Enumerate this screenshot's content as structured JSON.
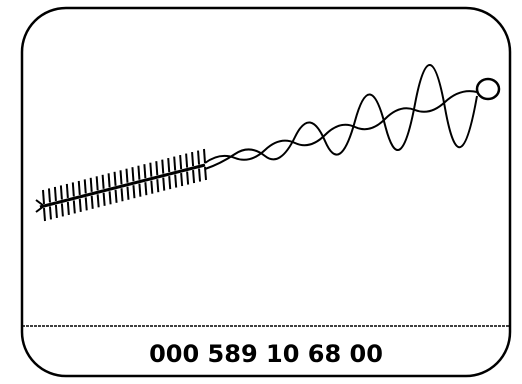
{
  "part_number": "000 589 10 68 00",
  "illustration": {
    "icon": "cleaning-brush-icon"
  },
  "colors": {
    "stroke": "#000000",
    "background": "#ffffff"
  }
}
